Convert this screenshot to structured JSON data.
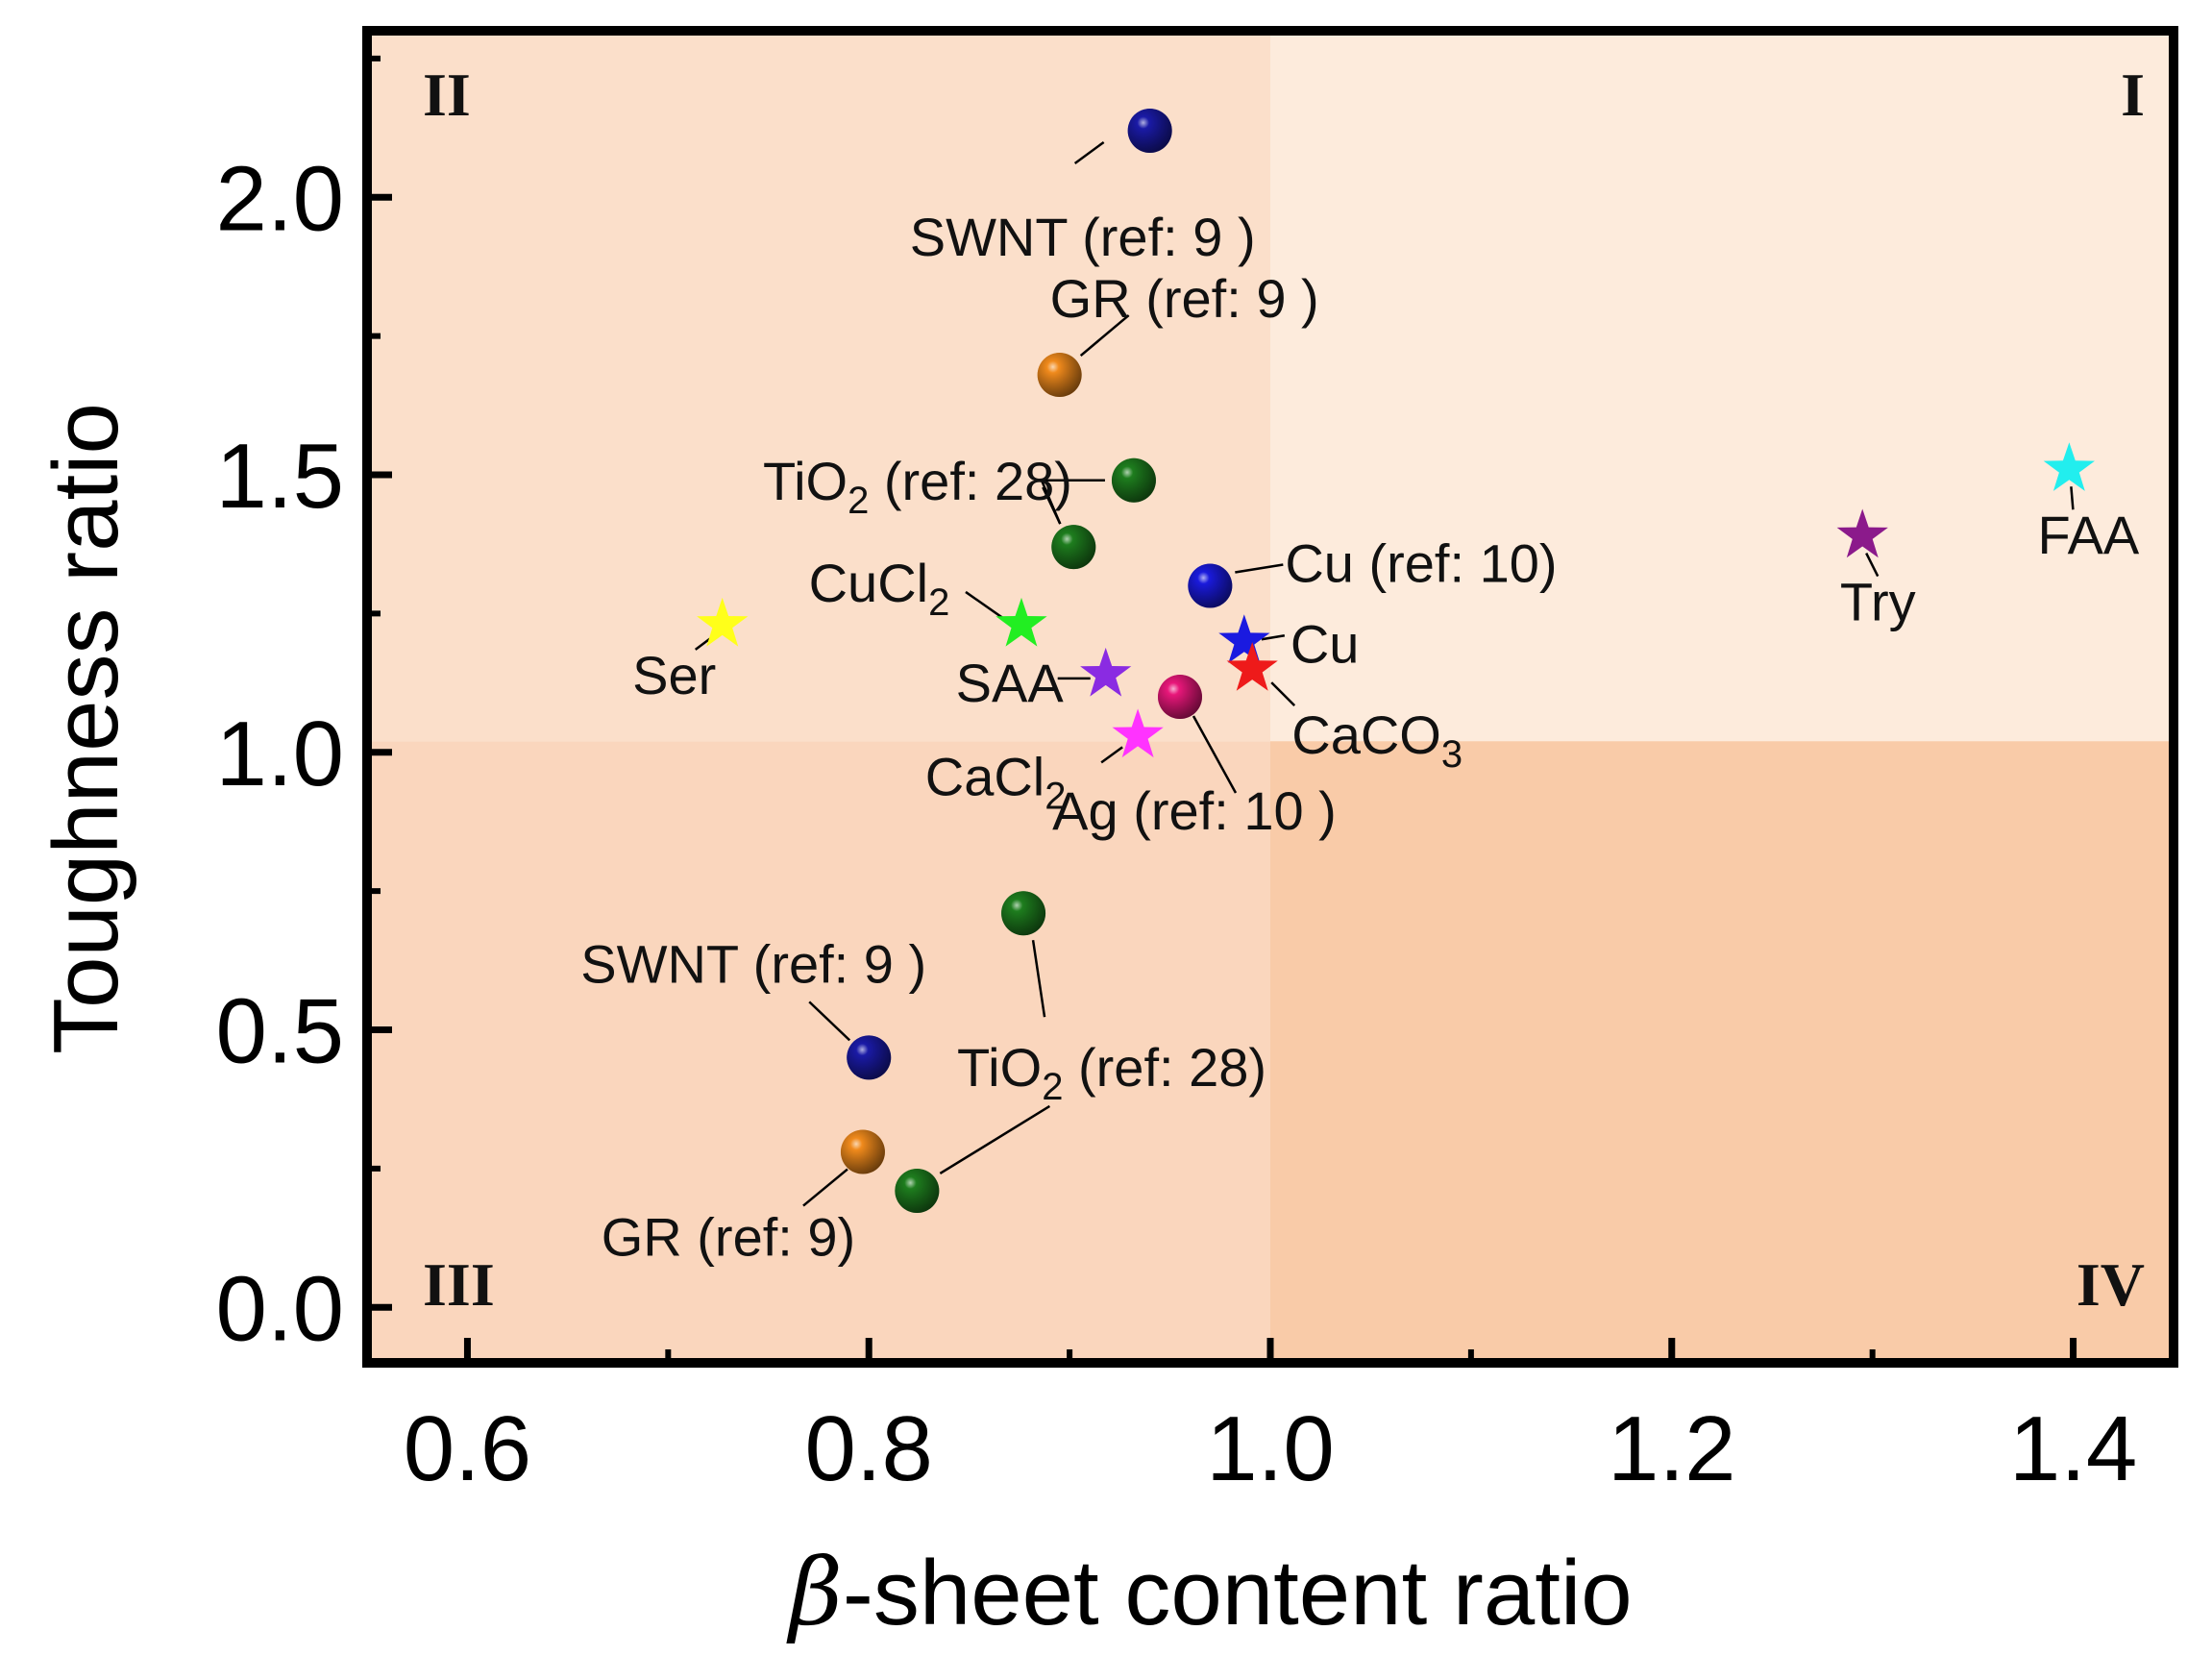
{
  "chart_data": {
    "type": "scatter",
    "title": "",
    "xlabel_symbol": "β",
    "xlabel_rest": "-sheet content ratio",
    "ylabel": "Toughness ratio",
    "xlim": [
      0.55,
      1.45
    ],
    "ylim": [
      -0.1,
      2.3
    ],
    "x_ticks": [
      0.6,
      0.8,
      1.0,
      1.2,
      1.4
    ],
    "x_tick_labels": [
      "0.6",
      "0.8",
      "1.0",
      "1.2",
      "1.4"
    ],
    "y_ticks": [
      0.0,
      0.5,
      1.0,
      1.5,
      2.0
    ],
    "y_tick_labels": [
      "0.0",
      "0.5",
      "1.0",
      "1.5",
      "2.0"
    ],
    "grid": false,
    "quadrant_split": {
      "x": 1.0,
      "y": 1.02
    },
    "quadrant_colors": {
      "I": "#fdebdc",
      "II": "#fbdfca",
      "III": "#fad6bd",
      "IV": "#f9cba8"
    },
    "quadrants": [
      {
        "id": "I",
        "label": "I"
      },
      {
        "id": "II",
        "label": "II"
      },
      {
        "id": "III",
        "label": "III"
      },
      {
        "id": "IV",
        "label": "IV"
      }
    ],
    "points": [
      {
        "marker": "sphere",
        "color": "#1a1aa6",
        "x": 0.94,
        "y": 2.12,
        "label_main": "SWNT (ref: 9 )",
        "label_sub": "",
        "label_tail": ""
      },
      {
        "marker": "sphere",
        "color": "#f08a1c",
        "x": 0.895,
        "y": 1.68,
        "label_main": "GR (ref: 9 )",
        "label_sub": "",
        "label_tail": ""
      },
      {
        "marker": "sphere",
        "color": "#1e7d1e",
        "x": 0.932,
        "y": 1.49,
        "label_main": "TiO",
        "label_sub": "2",
        "label_tail": " (ref: 28)"
      },
      {
        "marker": "sphere",
        "color": "#1e7d1e",
        "x": 0.902,
        "y": 1.37,
        "label_main": "",
        "label_sub": "",
        "label_tail": ""
      },
      {
        "marker": "sphere",
        "color": "#1a1adc",
        "x": 0.97,
        "y": 1.3,
        "label_main": "Cu (ref: 10)",
        "label_sub": "",
        "label_tail": ""
      },
      {
        "marker": "sphere",
        "color": "#e8177a",
        "x": 0.955,
        "y": 1.1,
        "label_main": "Ag (ref: 10 )",
        "label_sub": "",
        "label_tail": ""
      },
      {
        "marker": "sphere",
        "color": "#1e7d1e",
        "x": 0.877,
        "y": 0.71,
        "label_main": "TiO",
        "label_sub": "2",
        "label_tail": " (ref: 28)"
      },
      {
        "marker": "sphere",
        "color": "#1a1aa6",
        "x": 0.8,
        "y": 0.45,
        "label_main": "SWNT (ref: 9 )",
        "label_sub": "",
        "label_tail": ""
      },
      {
        "marker": "sphere",
        "color": "#f08a1c",
        "x": 0.797,
        "y": 0.28,
        "label_main": "GR (ref: 9)",
        "label_sub": "",
        "label_tail": ""
      },
      {
        "marker": "sphere",
        "color": "#1e7d1e",
        "x": 0.824,
        "y": 0.21,
        "label_main": "",
        "label_sub": "",
        "label_tail": ""
      },
      {
        "marker": "star",
        "color": "#ffff1a",
        "x": 0.727,
        "y": 1.23,
        "label_main": "Ser",
        "label_sub": "",
        "label_tail": ""
      },
      {
        "marker": "star",
        "color": "#22ee22",
        "x": 0.876,
        "y": 1.23,
        "label_main": "CuCl",
        "label_sub": "2",
        "label_tail": ""
      },
      {
        "marker": "star",
        "color": "#1a1ae0",
        "x": 0.987,
        "y": 1.2,
        "label_main": "Cu",
        "label_sub": "",
        "label_tail": ""
      },
      {
        "marker": "star",
        "color": "#ee1a1a",
        "x": 0.991,
        "y": 1.15,
        "label_main": "CaCO",
        "label_sub": "3",
        "label_tail": ""
      },
      {
        "marker": "star",
        "color": "#8a2be2",
        "x": 0.918,
        "y": 1.14,
        "label_main": "SAA",
        "label_sub": "",
        "label_tail": ""
      },
      {
        "marker": "star",
        "color": "#ff33ff",
        "x": 0.934,
        "y": 1.03,
        "label_main": "CaCl",
        "label_sub": "2",
        "label_tail": ""
      },
      {
        "marker": "star",
        "color": "#8b1a8b",
        "x": 1.295,
        "y": 1.39,
        "label_main": "Try",
        "label_sub": "",
        "label_tail": ""
      },
      {
        "marker": "star",
        "color": "#22eeee",
        "x": 1.398,
        "y": 1.51,
        "label_main": "FAA",
        "label_sub": "",
        "label_tail": ""
      }
    ]
  }
}
